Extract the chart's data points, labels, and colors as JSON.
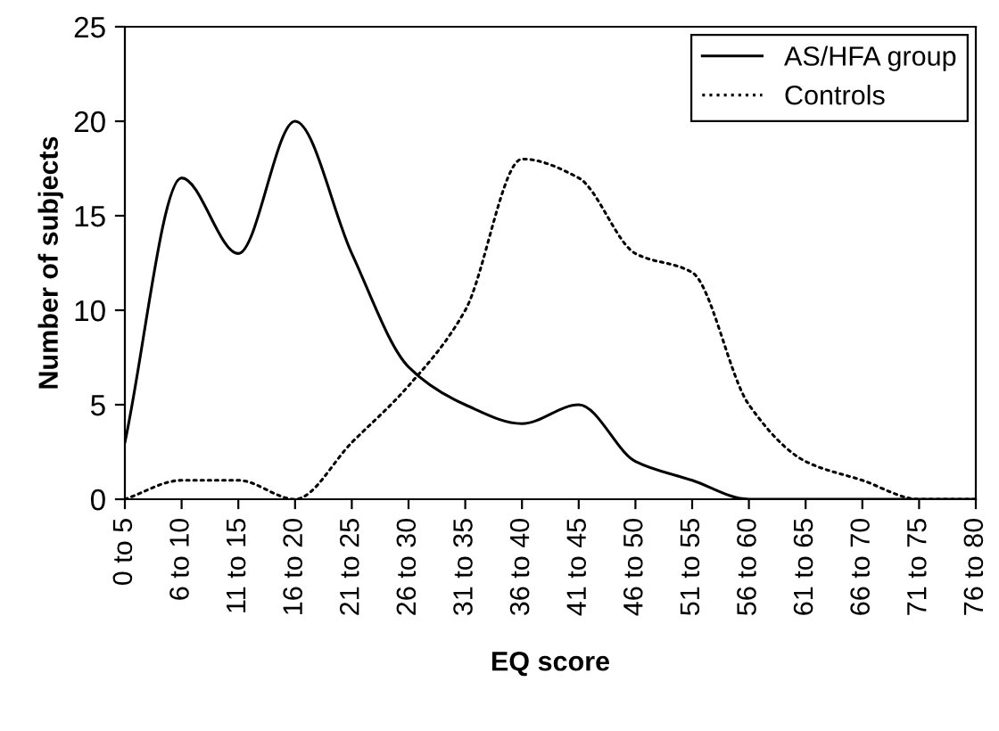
{
  "chart_data": {
    "type": "line",
    "xlabel": "EQ score",
    "ylabel": "Number of subjects",
    "categories": [
      "0 to 5",
      "6 to 10",
      "11 to 15",
      "16 to 20",
      "21 to 25",
      "26 to 30",
      "31 to 35",
      "36 to 40",
      "41 to 45",
      "46 to 50",
      "51 to 55",
      "56 to 60",
      "61 to 65",
      "66 to 70",
      "71 to 75",
      "76 to 80"
    ],
    "series": [
      {
        "name": "AS/HFA group",
        "color": "#000000",
        "line_style": "solid",
        "values": [
          3,
          17,
          13,
          20,
          13,
          7,
          5,
          4,
          5,
          2,
          1,
          0,
          0,
          0,
          0,
          0
        ]
      },
      {
        "name": "Controls",
        "color": "#000000",
        "line_style": "dotted",
        "values": [
          0,
          1,
          1,
          0,
          3,
          6,
          10,
          18,
          17,
          13,
          12,
          5,
          2,
          1,
          0,
          0
        ]
      }
    ],
    "ylim": [
      0,
      25
    ],
    "yticks": [
      0,
      5,
      10,
      15,
      20,
      25
    ],
    "grid": false,
    "legend": "top right",
    "marker": "none"
  }
}
